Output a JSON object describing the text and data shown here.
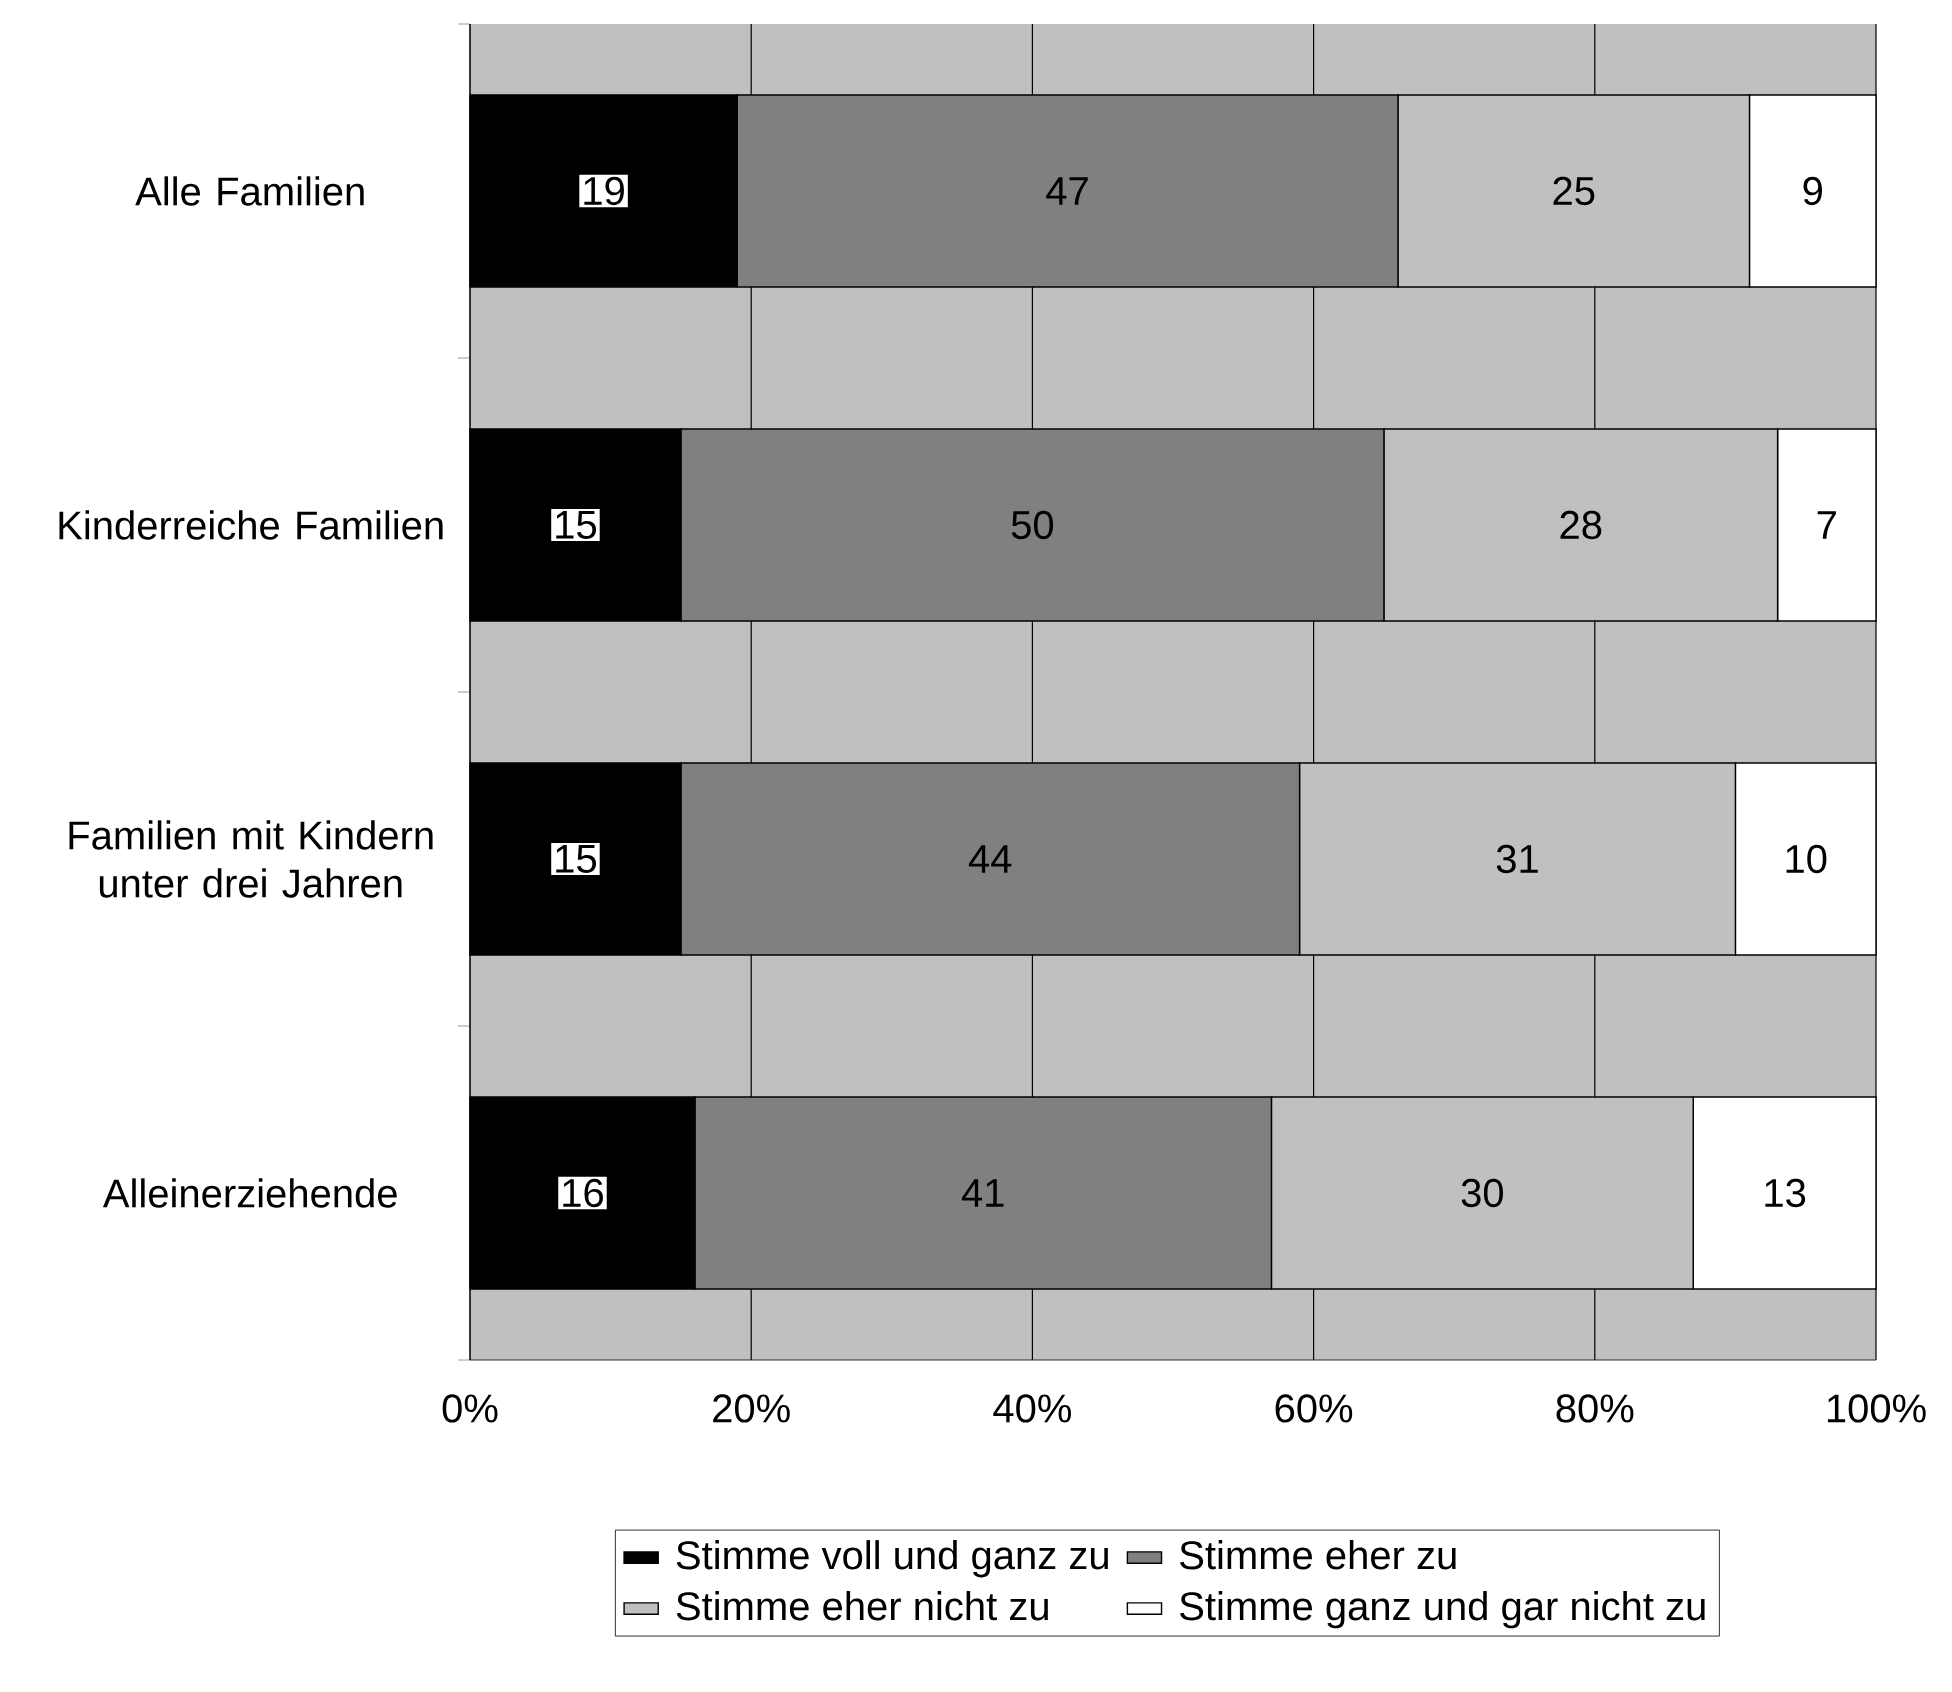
{
  "chart_data": {
    "type": "bar",
    "orientation": "horizontal",
    "stacked": true,
    "data_labels": true,
    "grid": "x",
    "legend": "bottom",
    "categories": [
      "Alle Familien",
      "Kinderreiche Familien",
      "Familien mit Kindern unter drei Jahren",
      "Alleinerziehende"
    ],
    "series": [
      {
        "name": "Stimme voll und ganz zu",
        "color": "#000000",
        "values": [
          19,
          15,
          15,
          16
        ]
      },
      {
        "name": "Stimme eher zu",
        "color": "#808080",
        "values": [
          47,
          50,
          44,
          41
        ]
      },
      {
        "name": "Stimme eher nicht zu",
        "color": "#c0c0c0",
        "values": [
          25,
          28,
          31,
          30
        ]
      },
      {
        "name": "Stimme ganz und gar nicht zu",
        "color": "#ffffff",
        "values": [
          9,
          7,
          10,
          13
        ]
      }
    ],
    "xlim": [
      0,
      100
    ],
    "xticks": [
      {
        "value": 0,
        "label": "0%"
      },
      {
        "value": 20,
        "label": "20%"
      },
      {
        "value": 40,
        "label": "40%"
      },
      {
        "value": 60,
        "label": "60%"
      },
      {
        "value": 80,
        "label": "80%"
      },
      {
        "value": 100,
        "label": "100%"
      }
    ]
  }
}
